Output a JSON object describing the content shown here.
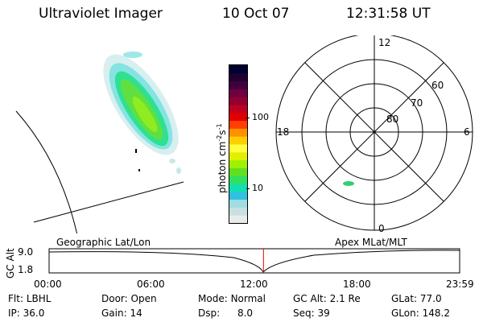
{
  "header": {
    "instrument": "Ultraviolet Imager",
    "date": "10 Oct 07",
    "time": "12:31:58 UT"
  },
  "colorbar": {
    "label_parts": [
      "photon cm",
      "-2",
      "s",
      "-1"
    ],
    "ticks": [
      "100",
      "10"
    ],
    "scale": "log",
    "colors": [
      "#e8ece8",
      "#c8e0e0",
      "#a0dce0",
      "#30c0e0",
      "#10e0b0",
      "#30e060",
      "#60e020",
      "#a0f000",
      "#e0f000",
      "#ffff40",
      "#ffd000",
      "#ff9000",
      "#ff4000",
      "#e00000",
      "#c00020",
      "#900030",
      "#700040",
      "#400040",
      "#200030",
      "#000030"
    ]
  },
  "polar_plot": {
    "mlt_labels": {
      "top": "12",
      "bottom": "0",
      "left": "18",
      "right": "6"
    },
    "lat_labels": [
      "60",
      "70",
      "80"
    ]
  },
  "timeline": {
    "left_label": "Geographic Lat/Lon",
    "right_label": "Apex MLat/MLT",
    "y_axis_label": "GC Alt",
    "y_ticks": [
      "9.0",
      "1.8"
    ],
    "x_ticks": [
      "00:00",
      "06:00",
      "12:00",
      "18:00",
      "23:59"
    ],
    "current_time": "12:31:58",
    "marker_color": "#e00000"
  },
  "status": {
    "row1": [
      {
        "label": "Flt:",
        "value": "LBHL"
      },
      {
        "label": "Door:",
        "value": "Open"
      },
      {
        "label": "Mode:",
        "value": "Normal"
      },
      {
        "label": "GC Alt:",
        "value": "2.1 Re"
      },
      {
        "label": "GLat:",
        "value": "77.0"
      }
    ],
    "row2": [
      {
        "label": "IP:",
        "value": "36.0"
      },
      {
        "label": "Gain:",
        "value": "14"
      },
      {
        "label": "Dsp:",
        "value": "8.0"
      },
      {
        "label": "Seq:",
        "value": "39"
      },
      {
        "label": "GLon:",
        "value": "148.2"
      }
    ]
  }
}
